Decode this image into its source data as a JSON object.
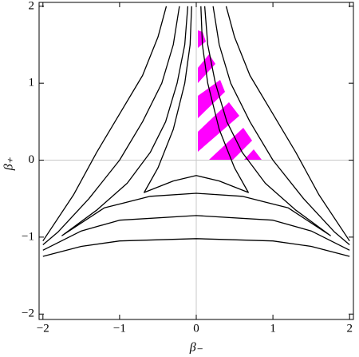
{
  "chart_data": {
    "type": "contour",
    "x_label": "β₋",
    "y_label": "β₊",
    "xlim": [
      -2.05,
      2.05
    ],
    "ylim": [
      -2.07,
      2.05
    ],
    "xticks": [
      {
        "value": -2,
        "label": "−2"
      },
      {
        "value": -1,
        "label": "−1"
      },
      0,
      1,
      2
    ],
    "yticks": [
      {
        "value": -2,
        "label": "−2"
      },
      {
        "value": -1,
        "label": "−1"
      },
      0,
      1,
      2
    ],
    "grid": true,
    "series": [
      {
        "color": "#000000",
        "x": [
          -0.39,
          -0.5,
          -0.7,
          -1.0,
          -1.3,
          -1.6,
          -2,
          null,
          0.39,
          0.5,
          0.7,
          1.0,
          1.3,
          1.6,
          2,
          null,
          -2,
          -1.5,
          -1,
          0,
          1,
          1.5,
          2
        ],
        "y": [
          2,
          1.6,
          1.1,
          0.6,
          0.1,
          -0.45,
          -1.05,
          null,
          2,
          1.6,
          1.1,
          0.6,
          0.1,
          -0.45,
          -1.05,
          null,
          -1.25,
          -1.12,
          -1.05,
          -1.02,
          -1.05,
          -1.12,
          -1.25
        ]
      },
      {
        "color": "#000000",
        "x": [
          -0.22,
          -0.3,
          -0.45,
          -0.7,
          -1.0,
          -1.4,
          -1.8,
          -2,
          null,
          0.22,
          0.3,
          0.45,
          0.7,
          1.0,
          1.4,
          1.8,
          2,
          null,
          -2,
          -1.5,
          -1,
          0,
          1,
          1.5,
          2
        ],
        "y": [
          2,
          1.5,
          1.0,
          0.5,
          0.0,
          -0.5,
          -0.93,
          -1.1,
          null,
          2,
          1.5,
          1.0,
          0.5,
          0.0,
          -0.5,
          -0.93,
          -1.1,
          null,
          -1.17,
          -0.92,
          -0.78,
          -0.72,
          -0.78,
          -0.92,
          -1.17
        ]
      },
      {
        "color": "#000000",
        "x": [
          -0.11,
          -0.15,
          -0.25,
          -0.4,
          -0.6,
          -0.9,
          -1.3,
          -1.75,
          -1.2,
          -0.6,
          0,
          0.6,
          1.2,
          1.75,
          1.3,
          0.9,
          0.6,
          0.4,
          0.25,
          0.15,
          0.11
        ],
        "y": [
          2,
          1.5,
          1.0,
          0.5,
          0.1,
          -0.3,
          -0.65,
          -0.98,
          -0.62,
          -0.47,
          -0.43,
          -0.47,
          -0.62,
          -0.98,
          -0.65,
          -0.3,
          0.1,
          0.5,
          1.0,
          1.5,
          2
        ]
      },
      {
        "color": "#000000",
        "x": [
          -0.06,
          -0.08,
          -0.15,
          -0.3,
          -0.5,
          -0.68,
          -0.3,
          0,
          0.3,
          0.68,
          0.5,
          0.3,
          0.15,
          0.08,
          0.06
        ],
        "y": [
          2,
          1.5,
          1.0,
          0.4,
          -0.1,
          -0.42,
          -0.27,
          -0.2,
          -0.27,
          -0.42,
          -0.1,
          0.4,
          1.0,
          1.5,
          2
        ]
      }
    ]
  }
}
